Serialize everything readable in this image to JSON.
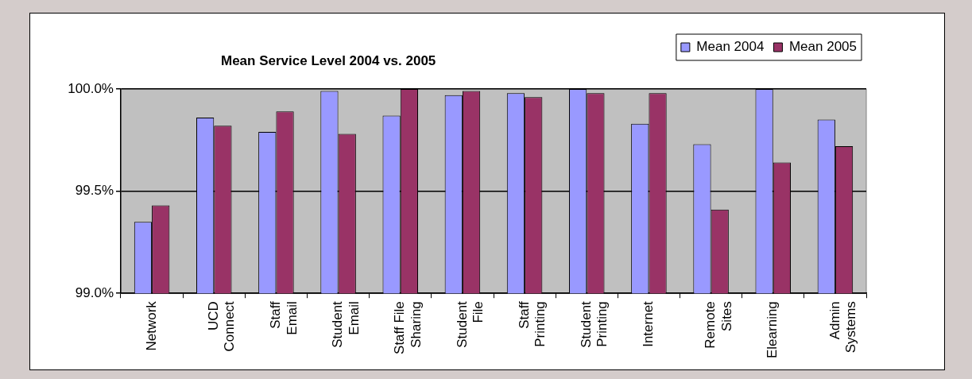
{
  "chart_data": {
    "type": "bar",
    "title": "Mean Service Level 2004 vs. 2005",
    "categories": [
      "Network",
      "UCD Connect",
      "Staff Email",
      "Student Email",
      "Staff File Sharing",
      "Student File",
      "Staff Printing",
      "Student Printing",
      "Internet",
      "Remote Sites",
      "Elearning",
      "Admin Systems"
    ],
    "series": [
      {
        "name": "Mean 2004",
        "color": "#9999ff",
        "values": [
          99.35,
          99.86,
          99.79,
          99.99,
          99.87,
          99.97,
          99.98,
          100.0,
          99.83,
          99.73,
          100.0,
          99.85
        ]
      },
      {
        "name": "Mean 2005",
        "color": "#993366",
        "values": [
          99.43,
          99.82,
          99.89,
          99.78,
          100.0,
          99.99,
          99.96,
          99.98,
          99.98,
          99.41,
          99.64,
          99.72
        ]
      }
    ],
    "ylim": [
      99.0,
      100.0
    ],
    "yticks": [
      {
        "value": 99.0,
        "label": "99.0%"
      },
      {
        "value": 99.5,
        "label": "99.5%"
      },
      {
        "value": 100.0,
        "label": "100.0%"
      }
    ],
    "grid": "y",
    "legend": "top right"
  }
}
